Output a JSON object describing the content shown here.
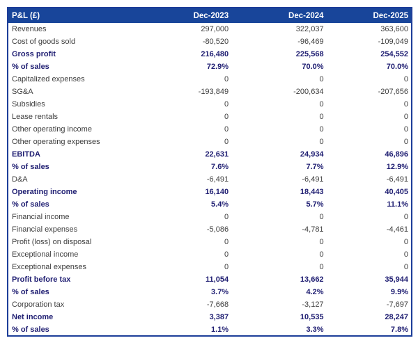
{
  "colors": {
    "header_bg": "#18459A",
    "table_border": "#1D3E99",
    "emphasis_text": "#1F1E72",
    "body_text": "#3D3D3D",
    "header_text": "#FFFFFF",
    "page_bg": "#FFFFFF"
  },
  "table": {
    "title_column": "P&L (£)",
    "columns": [
      "Dec-2023",
      "Dec-2024",
      "Dec-2025"
    ],
    "rows": [
      {
        "label": "Revenues",
        "values": [
          "297,000",
          "322,037",
          "363,600"
        ],
        "emphasis": false
      },
      {
        "label": "Cost of goods sold",
        "values": [
          "-80,520",
          "-96,469",
          "-109,049"
        ],
        "emphasis": false
      },
      {
        "label": "Gross profit",
        "values": [
          "216,480",
          "225,568",
          "254,552"
        ],
        "emphasis": true
      },
      {
        "label": "% of sales",
        "values": [
          "72.9%",
          "70.0%",
          "70.0%"
        ],
        "emphasis": true
      },
      {
        "label": "Capitalized expenses",
        "values": [
          "0",
          "0",
          "0"
        ],
        "emphasis": false
      },
      {
        "label": "SG&A",
        "values": [
          "-193,849",
          "-200,634",
          "-207,656"
        ],
        "emphasis": false
      },
      {
        "label": "Subsidies",
        "values": [
          "0",
          "0",
          "0"
        ],
        "emphasis": false
      },
      {
        "label": "Lease rentals",
        "values": [
          "0",
          "0",
          "0"
        ],
        "emphasis": false
      },
      {
        "label": "Other operating income",
        "values": [
          "0",
          "0",
          "0"
        ],
        "emphasis": false
      },
      {
        "label": "Other operating expenses",
        "values": [
          "0",
          "0",
          "0"
        ],
        "emphasis": false
      },
      {
        "label": "EBITDA",
        "values": [
          "22,631",
          "24,934",
          "46,896"
        ],
        "emphasis": true
      },
      {
        "label": "% of sales",
        "values": [
          "7.6%",
          "7.7%",
          "12.9%"
        ],
        "emphasis": true
      },
      {
        "label": "D&A",
        "values": [
          "-6,491",
          "-6,491",
          "-6,491"
        ],
        "emphasis": false
      },
      {
        "label": "Operating income",
        "values": [
          "16,140",
          "18,443",
          "40,405"
        ],
        "emphasis": true
      },
      {
        "label": "% of sales",
        "values": [
          "5.4%",
          "5.7%",
          "11.1%"
        ],
        "emphasis": true
      },
      {
        "label": "Financial income",
        "values": [
          "0",
          "0",
          "0"
        ],
        "emphasis": false
      },
      {
        "label": "Financial expenses",
        "values": [
          "-5,086",
          "-4,781",
          "-4,461"
        ],
        "emphasis": false
      },
      {
        "label": "Profit (loss) on disposal",
        "values": [
          "0",
          "0",
          "0"
        ],
        "emphasis": false
      },
      {
        "label": "Exceptional income",
        "values": [
          "0",
          "0",
          "0"
        ],
        "emphasis": false
      },
      {
        "label": "Exceptional expenses",
        "values": [
          "0",
          "0",
          "0"
        ],
        "emphasis": false
      },
      {
        "label": "Profit before tax",
        "values": [
          "11,054",
          "13,662",
          "35,944"
        ],
        "emphasis": true
      },
      {
        "label": "% of sales",
        "values": [
          "3.7%",
          "4.2%",
          "9.9%"
        ],
        "emphasis": true
      },
      {
        "label": "Corporation tax",
        "values": [
          "-7,668",
          "-3,127",
          "-7,697"
        ],
        "emphasis": false
      },
      {
        "label": "Net income",
        "values": [
          "3,387",
          "10,535",
          "28,247"
        ],
        "emphasis": true
      },
      {
        "label": "% of sales",
        "values": [
          "1.1%",
          "3.3%",
          "7.8%"
        ],
        "emphasis": true
      }
    ]
  }
}
